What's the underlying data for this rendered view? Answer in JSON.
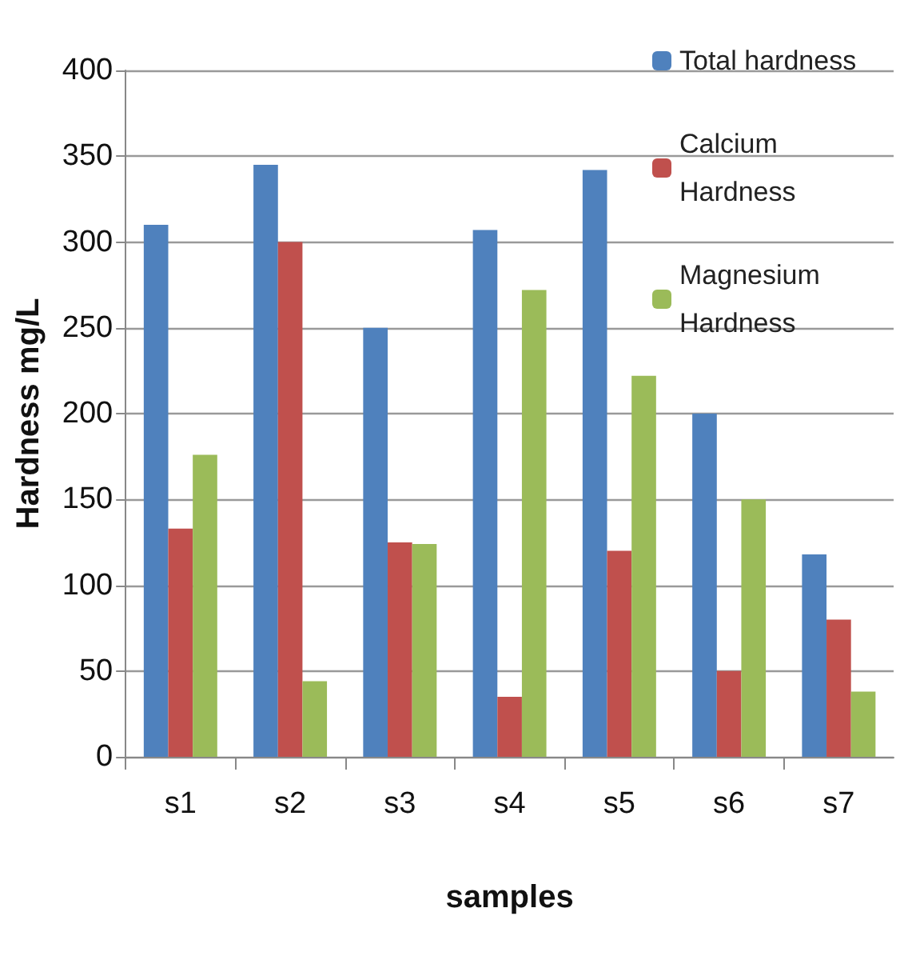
{
  "chart_data": {
    "type": "bar",
    "xlabel": "samples",
    "ylabel": "Hardness mg/L",
    "categories": [
      "s1",
      "s2",
      "s3",
      "s4",
      "s5",
      "s6",
      "s7"
    ],
    "series": [
      {
        "name": "Total hardness",
        "color": "#4f81bd",
        "values": [
          310,
          345,
          250,
          307,
          342,
          200,
          118
        ]
      },
      {
        "name": "Calcium Hardness",
        "color": "#c0504d",
        "values": [
          133,
          300,
          125,
          35,
          120,
          50,
          80
        ]
      },
      {
        "name": "Magnesium Hardness",
        "color": "#9bbb59",
        "values": [
          176,
          44,
          124,
          272,
          222,
          150,
          38
        ]
      }
    ],
    "ylim": [
      0,
      400
    ],
    "yticks": [
      0,
      50,
      100,
      150,
      200,
      250,
      300,
      350,
      400
    ],
    "grid": "y",
    "legend": "top right"
  }
}
